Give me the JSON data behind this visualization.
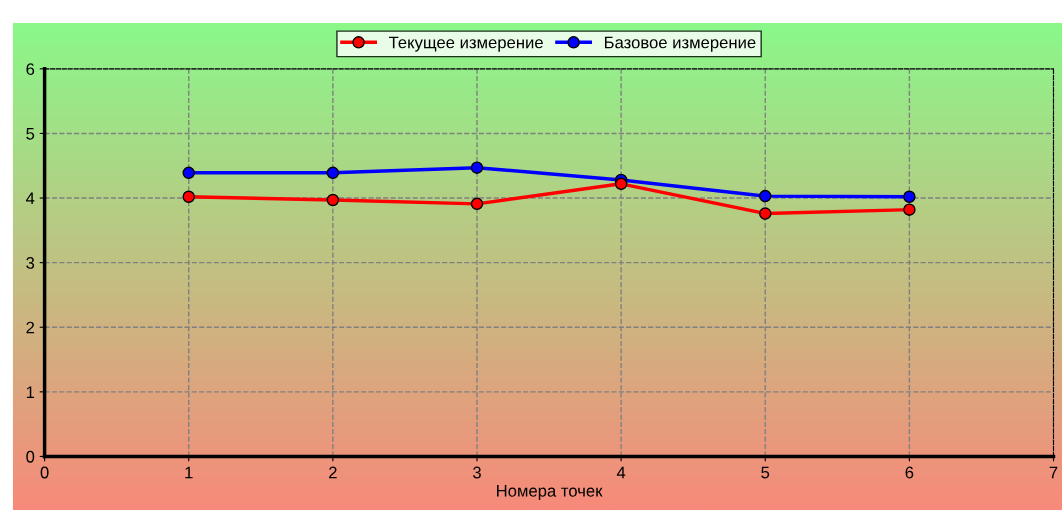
{
  "chart_data": {
    "type": "line",
    "xlabel": "Номера точек",
    "x": [
      1,
      2,
      3,
      4,
      5,
      6
    ],
    "series": [
      {
        "name": "Текущее измерение",
        "color": "#ff0000",
        "values": [
          4.02,
          3.97,
          3.91,
          4.22,
          3.76,
          3.82
        ]
      },
      {
        "name": "Базовое измерение",
        "color": "#0000ff",
        "values": [
          4.39,
          4.39,
          4.47,
          4.28,
          4.03,
          4.02
        ]
      }
    ],
    "xlim": [
      0,
      7
    ],
    "xticks": [
      0,
      1,
      2,
      3,
      4,
      5,
      6,
      7
    ],
    "ylim": [
      0,
      6
    ],
    "yticks": [
      0,
      1,
      2,
      3,
      4,
      5,
      6
    ],
    "grid": true,
    "legend": "top",
    "marker": "circle",
    "line_style": "solid"
  }
}
